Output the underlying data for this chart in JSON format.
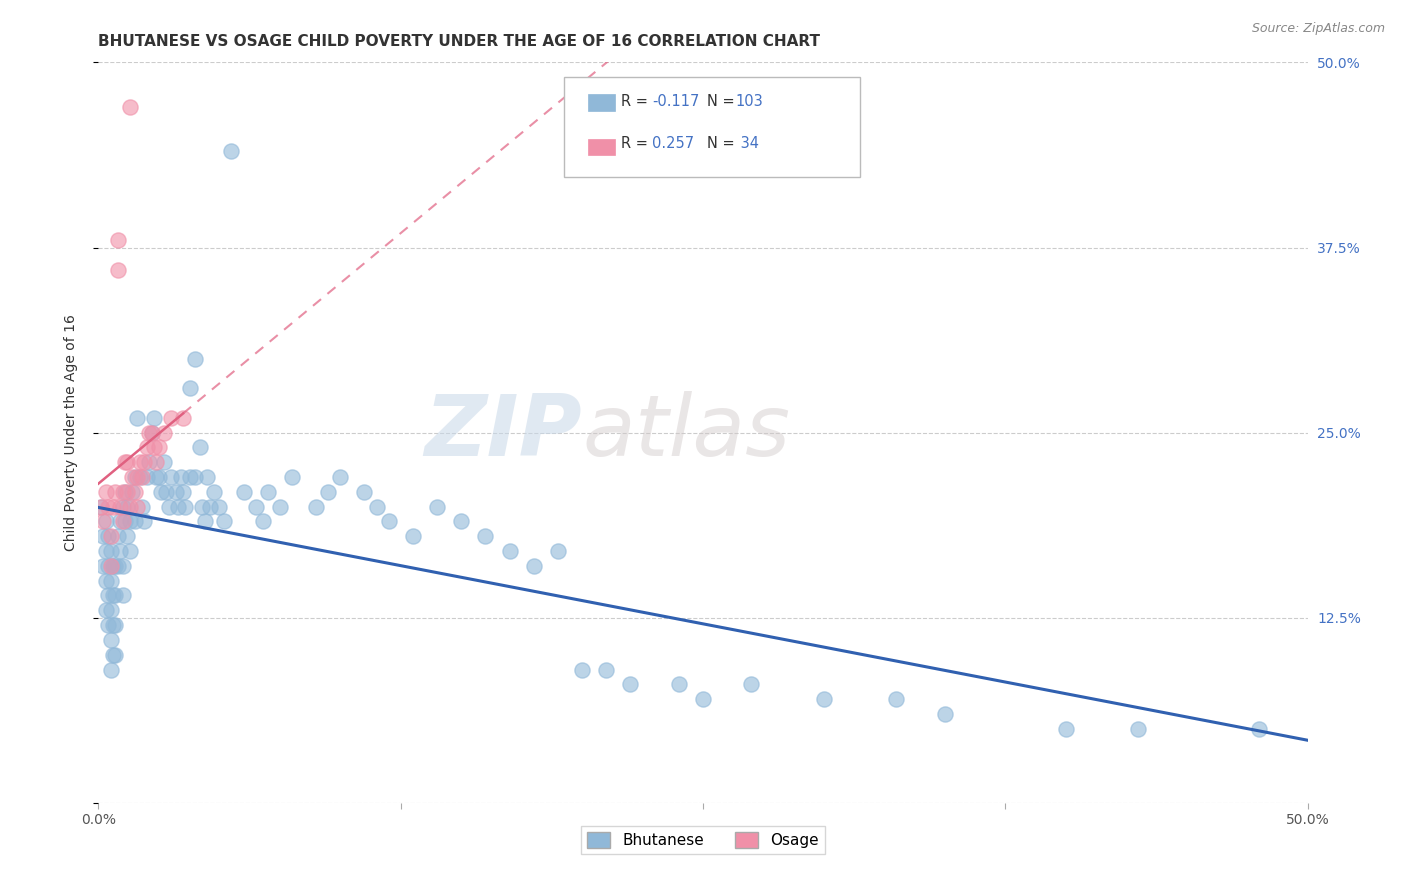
{
  "title": "BHUTANESE VS OSAGE CHILD POVERTY UNDER THE AGE OF 16 CORRELATION CHART",
  "source": "Source: ZipAtlas.com",
  "ylabel": "Child Poverty Under the Age of 16",
  "xlim": [
    0,
    0.5
  ],
  "ylim": [
    0,
    0.5
  ],
  "watermark_zip": "ZIP",
  "watermark_atlas": "atlas",
  "bhutanese_color": "#90b8d8",
  "osage_color": "#f090a8",
  "bhutanese_line_color": "#3060b0",
  "osage_line_color": "#e06080",
  "legend_color": "#4472c4",
  "bhutanese_R": -0.117,
  "bhutanese_N": 103,
  "osage_R": 0.257,
  "osage_N": 34,
  "bhutanese_scatter": [
    [
      0.001,
      0.2
    ],
    [
      0.002,
      0.18
    ],
    [
      0.002,
      0.16
    ],
    [
      0.003,
      0.19
    ],
    [
      0.003,
      0.17
    ],
    [
      0.003,
      0.15
    ],
    [
      0.003,
      0.13
    ],
    [
      0.004,
      0.18
    ],
    [
      0.004,
      0.16
    ],
    [
      0.004,
      0.14
    ],
    [
      0.004,
      0.12
    ],
    [
      0.005,
      0.17
    ],
    [
      0.005,
      0.15
    ],
    [
      0.005,
      0.13
    ],
    [
      0.005,
      0.11
    ],
    [
      0.005,
      0.09
    ],
    [
      0.006,
      0.16
    ],
    [
      0.006,
      0.14
    ],
    [
      0.006,
      0.12
    ],
    [
      0.006,
      0.1
    ],
    [
      0.007,
      0.16
    ],
    [
      0.007,
      0.14
    ],
    [
      0.007,
      0.12
    ],
    [
      0.007,
      0.1
    ],
    [
      0.008,
      0.18
    ],
    [
      0.008,
      0.16
    ],
    [
      0.009,
      0.19
    ],
    [
      0.009,
      0.17
    ],
    [
      0.01,
      0.2
    ],
    [
      0.01,
      0.16
    ],
    [
      0.01,
      0.14
    ],
    [
      0.011,
      0.21
    ],
    [
      0.011,
      0.19
    ],
    [
      0.012,
      0.2
    ],
    [
      0.012,
      0.18
    ],
    [
      0.013,
      0.19
    ],
    [
      0.013,
      0.17
    ],
    [
      0.014,
      0.21
    ],
    [
      0.015,
      0.22
    ],
    [
      0.015,
      0.19
    ],
    [
      0.016,
      0.26
    ],
    [
      0.017,
      0.22
    ],
    [
      0.018,
      0.2
    ],
    [
      0.019,
      0.19
    ],
    [
      0.02,
      0.22
    ],
    [
      0.021,
      0.23
    ],
    [
      0.022,
      0.25
    ],
    [
      0.023,
      0.26
    ],
    [
      0.024,
      0.22
    ],
    [
      0.025,
      0.22
    ],
    [
      0.026,
      0.21
    ],
    [
      0.027,
      0.23
    ],
    [
      0.028,
      0.21
    ],
    [
      0.029,
      0.2
    ],
    [
      0.03,
      0.22
    ],
    [
      0.032,
      0.21
    ],
    [
      0.033,
      0.2
    ],
    [
      0.034,
      0.22
    ],
    [
      0.035,
      0.21
    ],
    [
      0.036,
      0.2
    ],
    [
      0.038,
      0.28
    ],
    [
      0.038,
      0.22
    ],
    [
      0.04,
      0.3
    ],
    [
      0.04,
      0.22
    ],
    [
      0.042,
      0.24
    ],
    [
      0.043,
      0.2
    ],
    [
      0.044,
      0.19
    ],
    [
      0.045,
      0.22
    ],
    [
      0.046,
      0.2
    ],
    [
      0.048,
      0.21
    ],
    [
      0.05,
      0.2
    ],
    [
      0.052,
      0.19
    ],
    [
      0.055,
      0.44
    ],
    [
      0.06,
      0.21
    ],
    [
      0.065,
      0.2
    ],
    [
      0.068,
      0.19
    ],
    [
      0.07,
      0.21
    ],
    [
      0.075,
      0.2
    ],
    [
      0.08,
      0.22
    ],
    [
      0.09,
      0.2
    ],
    [
      0.095,
      0.21
    ],
    [
      0.1,
      0.22
    ],
    [
      0.11,
      0.21
    ],
    [
      0.115,
      0.2
    ],
    [
      0.12,
      0.19
    ],
    [
      0.13,
      0.18
    ],
    [
      0.14,
      0.2
    ],
    [
      0.15,
      0.19
    ],
    [
      0.16,
      0.18
    ],
    [
      0.17,
      0.17
    ],
    [
      0.18,
      0.16
    ],
    [
      0.19,
      0.17
    ],
    [
      0.2,
      0.09
    ],
    [
      0.21,
      0.09
    ],
    [
      0.22,
      0.08
    ],
    [
      0.24,
      0.08
    ],
    [
      0.25,
      0.07
    ],
    [
      0.27,
      0.08
    ],
    [
      0.3,
      0.07
    ],
    [
      0.33,
      0.07
    ],
    [
      0.35,
      0.06
    ],
    [
      0.4,
      0.05
    ],
    [
      0.43,
      0.05
    ],
    [
      0.48,
      0.05
    ]
  ],
  "osage_scatter": [
    [
      0.001,
      0.2
    ],
    [
      0.002,
      0.19
    ],
    [
      0.003,
      0.21
    ],
    [
      0.004,
      0.2
    ],
    [
      0.005,
      0.18
    ],
    [
      0.005,
      0.16
    ],
    [
      0.006,
      0.2
    ],
    [
      0.007,
      0.21
    ],
    [
      0.008,
      0.38
    ],
    [
      0.008,
      0.36
    ],
    [
      0.009,
      0.2
    ],
    [
      0.01,
      0.21
    ],
    [
      0.01,
      0.19
    ],
    [
      0.011,
      0.23
    ],
    [
      0.012,
      0.23
    ],
    [
      0.012,
      0.21
    ],
    [
      0.013,
      0.2
    ],
    [
      0.013,
      0.47
    ],
    [
      0.014,
      0.22
    ],
    [
      0.015,
      0.21
    ],
    [
      0.016,
      0.22
    ],
    [
      0.016,
      0.2
    ],
    [
      0.017,
      0.23
    ],
    [
      0.018,
      0.22
    ],
    [
      0.019,
      0.23
    ],
    [
      0.02,
      0.24
    ],
    [
      0.021,
      0.25
    ],
    [
      0.022,
      0.25
    ],
    [
      0.023,
      0.24
    ],
    [
      0.024,
      0.23
    ],
    [
      0.025,
      0.24
    ],
    [
      0.027,
      0.25
    ],
    [
      0.03,
      0.26
    ],
    [
      0.035,
      0.26
    ]
  ],
  "background_color": "#ffffff",
  "grid_color": "#cccccc"
}
